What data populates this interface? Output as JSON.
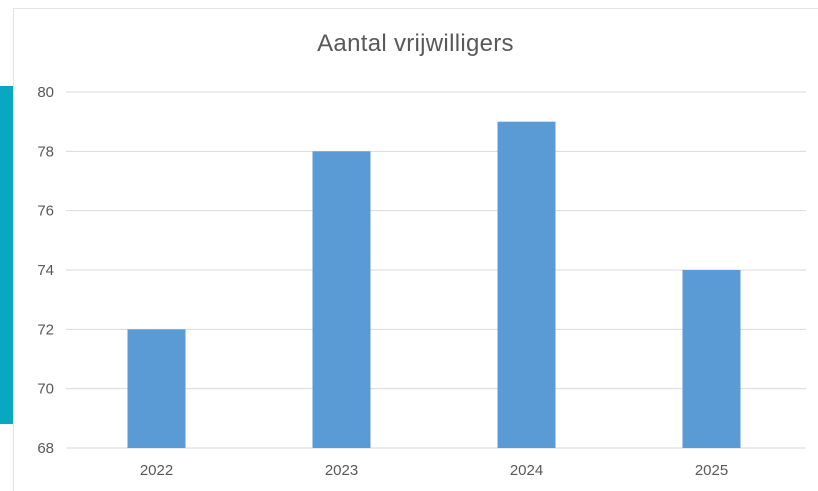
{
  "colors": {
    "accent_bar": "#0aa8c0",
    "bar_fill": "#5b9bd5",
    "gridline": "#d9d9d9",
    "text": "#595959"
  },
  "chart_data": {
    "type": "bar",
    "title": "Aantal vrijwilligers",
    "xlabel": "",
    "ylabel": "",
    "categories": [
      "2022",
      "2023",
      "2024",
      "2025"
    ],
    "values": [
      72,
      78,
      79,
      74
    ],
    "ylim": [
      68,
      80
    ],
    "yticks": [
      68,
      70,
      72,
      74,
      76,
      78,
      80
    ],
    "grid": true,
    "legend": "none"
  }
}
